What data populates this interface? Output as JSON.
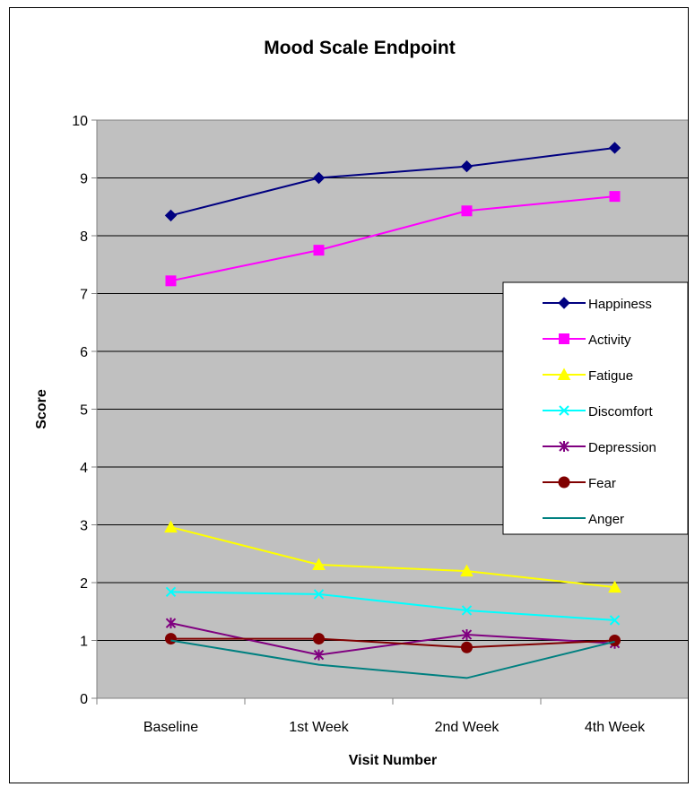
{
  "chart_data": {
    "type": "line",
    "title": "Mood Scale Endpoint",
    "xlabel": "Visit Number",
    "ylabel": "Score",
    "categories": [
      "Baseline",
      "1st Week",
      "2nd Week",
      "4th Week"
    ],
    "ylim": [
      0,
      10
    ],
    "yticks": [
      "0",
      "1",
      "2",
      "3",
      "4",
      "5",
      "6",
      "7",
      "8",
      "9",
      "10"
    ],
    "grid": true,
    "legend_position": "right",
    "plot_background": "#c0c0c0",
    "series": [
      {
        "name": "Happiness",
        "values": [
          8.35,
          9.0,
          9.2,
          9.52
        ],
        "color": "#000080",
        "marker": "diamond"
      },
      {
        "name": "Activity",
        "values": [
          7.22,
          7.75,
          8.43,
          8.68
        ],
        "color": "#ff00ff",
        "marker": "square"
      },
      {
        "name": "Fatigue",
        "values": [
          2.96,
          2.31,
          2.2,
          1.92
        ],
        "color": "#ffff00",
        "marker": "triangle"
      },
      {
        "name": "Discomfort",
        "values": [
          1.84,
          1.8,
          1.52,
          1.35
        ],
        "color": "#00ffff",
        "marker": "x"
      },
      {
        "name": "Depression",
        "values": [
          1.3,
          0.75,
          1.1,
          0.95
        ],
        "color": "#800080",
        "marker": "star"
      },
      {
        "name": "Fear",
        "values": [
          1.03,
          1.03,
          0.88,
          1.0
        ],
        "color": "#800000",
        "marker": "circle"
      },
      {
        "name": "Anger",
        "values": [
          1.0,
          0.58,
          0.35,
          0.98
        ],
        "color": "#008080",
        "marker": "none"
      }
    ]
  }
}
